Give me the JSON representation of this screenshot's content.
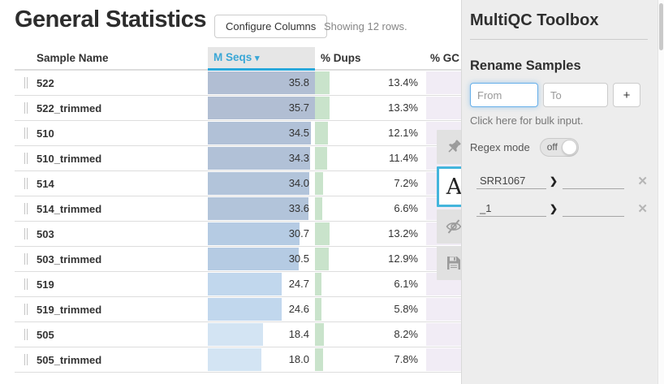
{
  "page": {
    "title": "General Statistics",
    "configure_columns_label": "Configure Columns",
    "rows_count_text": "Showing 12 rows."
  },
  "icons": {
    "sort_indicator": "▾",
    "chevron": "❯",
    "close": "✕"
  },
  "table": {
    "columns": {
      "sample": "Sample Name",
      "mseqs": "M Seqs",
      "dups": "% Dups",
      "gc": "% GC"
    },
    "sorted_column": "M Seqs",
    "mseqs_max": 35.8,
    "rows": [
      {
        "sample": "522",
        "mseqs": "35.8",
        "mseqs_val": 35.8,
        "dups": "13.4%",
        "dups_val": 13.4,
        "bar_color": "#b1bed3"
      },
      {
        "sample": "522_trimmed",
        "mseqs": "35.7",
        "mseqs_val": 35.7,
        "dups": "13.3%",
        "dups_val": 13.3,
        "bar_color": "#b1bed3"
      },
      {
        "sample": "510",
        "mseqs": "34.5",
        "mseqs_val": 34.5,
        "dups": "12.1%",
        "dups_val": 12.1,
        "bar_color": "#b1c1d7"
      },
      {
        "sample": "510_trimmed",
        "mseqs": "34.3",
        "mseqs_val": 34.3,
        "dups": "11.4%",
        "dups_val": 11.4,
        "bar_color": "#b1c1d7"
      },
      {
        "sample": "514",
        "mseqs": "34.0",
        "mseqs_val": 34.0,
        "dups": "7.2%",
        "dups_val": 7.2,
        "bar_color": "#b2c4da"
      },
      {
        "sample": "514_trimmed",
        "mseqs": "33.6",
        "mseqs_val": 33.6,
        "dups": "6.6%",
        "dups_val": 6.6,
        "bar_color": "#b2c4da"
      },
      {
        "sample": "503",
        "mseqs": "30.7",
        "mseqs_val": 30.7,
        "dups": "13.2%",
        "dups_val": 13.2,
        "bar_color": "#b5cbe3"
      },
      {
        "sample": "503_trimmed",
        "mseqs": "30.5",
        "mseqs_val": 30.5,
        "dups": "12.9%",
        "dups_val": 12.9,
        "bar_color": "#b5cbe3"
      },
      {
        "sample": "519",
        "mseqs": "24.7",
        "mseqs_val": 24.7,
        "dups": "6.1%",
        "dups_val": 6.1,
        "bar_color": "#c1d7ed"
      },
      {
        "sample": "519_trimmed",
        "mseqs": "24.6",
        "mseqs_val": 24.6,
        "dups": "5.8%",
        "dups_val": 5.8,
        "bar_color": "#c1d7ed"
      },
      {
        "sample": "505",
        "mseqs": "18.4",
        "mseqs_val": 18.4,
        "dups": "8.2%",
        "dups_val": 8.2,
        "bar_color": "#d3e4f3"
      },
      {
        "sample": "505_trimmed",
        "mseqs": "18.0",
        "mseqs_val": 18.0,
        "dups": "7.8%",
        "dups_val": 7.8,
        "bar_color": "#d3e4f3"
      }
    ],
    "colors": {
      "sort_accent": "#29a8db",
      "sorted_header_text": "#3aa7d6",
      "sorted_header_bg": "#e6e6e6",
      "dups_bar": "#c9e3cb",
      "gc_bar": "#f1ecf5"
    }
  },
  "floating_toolbar": {
    "highlight_label": "A"
  },
  "toolbox": {
    "title": "MultiQC Toolbox",
    "rename": {
      "heading": "Rename Samples",
      "from_placeholder": "From",
      "to_placeholder": "To",
      "add_label": "+",
      "bulk_link": "Click here for bulk input.",
      "regex_label": "Regex mode",
      "regex_state": "off",
      "patterns": [
        {
          "from": "SRR1067",
          "to": ""
        },
        {
          "from": "_1",
          "to": ""
        }
      ]
    }
  }
}
